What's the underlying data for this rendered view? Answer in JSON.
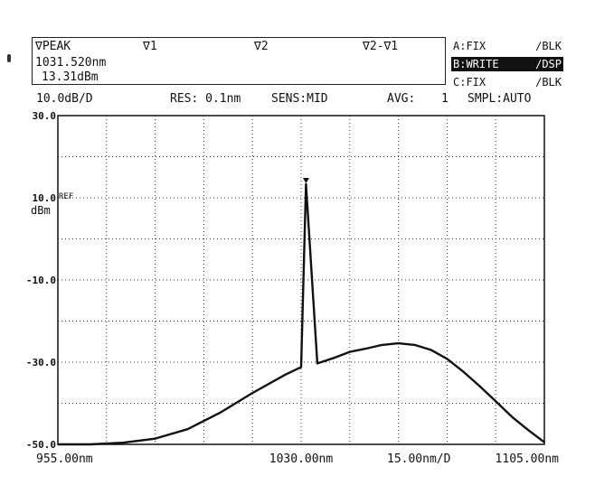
{
  "header": {
    "marker_label": "∇PEAK",
    "marker_wavelength": "1031.520nm",
    "marker_level": "13.31dBm",
    "v1_label": "∇1",
    "v2_label": "∇2",
    "delta_label": "∇2-∇1"
  },
  "traces": [
    {
      "left": "A:FIX",
      "right": "∕BLK",
      "active": false
    },
    {
      "left": "B:WRITE",
      "right": "∕DSP",
      "active": true
    },
    {
      "left": "C:FIX",
      "right": "∕BLK",
      "active": false
    }
  ],
  "settings": {
    "scale": "10.0dB/D",
    "resolution": "RES: 0.1nm",
    "sensitivity": "SENS:MID",
    "averaging_label": "AVG:",
    "averaging_value": "1",
    "sampling": "SMPL:AUTO"
  },
  "chart_data": {
    "type": "line",
    "title": "",
    "xlabel": "",
    "ylabel": "dBm",
    "xlim": [
      955.0,
      1105.0
    ],
    "ylim": [
      -50,
      30
    ],
    "y_ticks": [
      {
        "value": 30,
        "label": "30.0"
      },
      {
        "value": 10,
        "label": "10.0"
      },
      {
        "value": -10,
        "label": "-10.0"
      },
      {
        "value": -30,
        "label": "-30.0"
      },
      {
        "value": -50,
        "label": "-50.0"
      }
    ],
    "ref_label": "REF",
    "y_unit_label": "dBm",
    "x_labels": {
      "start": "955.00nm",
      "center": "1030.00nm",
      "span_per_div": "15.00nm/D",
      "stop": "1105.00nm"
    },
    "grid": true,
    "grid_divisions": {
      "x": 10,
      "y": 8
    },
    "series": [
      {
        "color": "#111111",
        "x": [
          955,
          965,
          975,
          985,
          995,
          1005,
          1015,
          1025,
          1030,
          1031.5,
          1035,
          1040,
          1045,
          1050,
          1055,
          1060,
          1065,
          1070,
          1075,
          1080,
          1085,
          1090,
          1095,
          1100,
          1105
        ],
        "y": [
          -50,
          -50,
          -49.6,
          -48.6,
          -46.3,
          -42.3,
          -37.5,
          -33.1,
          -31.2,
          13.31,
          -30.3,
          -29.0,
          -27.5,
          -26.7,
          -25.8,
          -25.4,
          -25.8,
          -27.0,
          -29.2,
          -32.3,
          -35.8,
          -39.5,
          -43.3,
          -46.5,
          -49.5
        ]
      }
    ],
    "markers": [
      {
        "name": "PEAK",
        "x": 1031.52,
        "y": 13.31
      }
    ]
  }
}
